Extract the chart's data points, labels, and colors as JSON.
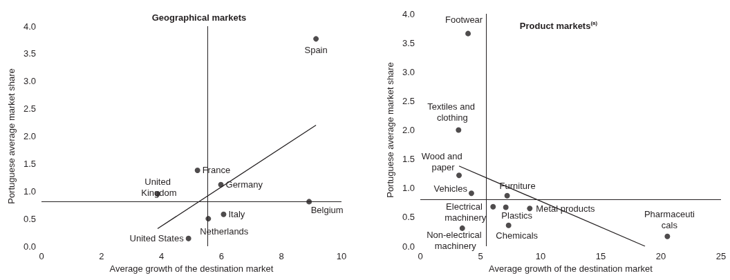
{
  "chart_data": [
    {
      "type": "scatter",
      "title": "Geographical markets",
      "xlabel": "Average growth of the destination market",
      "ylabel": "Portuguese average market share",
      "series": [
        {
          "color": "#231f20",
          "x": [
            9.15,
            5.2,
            5.98,
            3.87,
            8.92,
            6.07,
            5.56,
            4.9
          ],
          "values": [
            3.77,
            1.38,
            1.12,
            0.95,
            0.81,
            0.58,
            0.5,
            0.14
          ]
        },
        {
          "type": "line",
          "color": "#231f20",
          "marker": "none",
          "x": [
            3.87,
            9.15
          ],
          "values": [
            0.32,
            2.2
          ]
        }
      ],
      "annotations": [
        {
          "text": "Spain",
          "x": 9.15,
          "y": 3.77
        },
        {
          "text": "France",
          "x": 5.2,
          "y": 1.38
        },
        {
          "text": "Germany",
          "x": 5.98,
          "y": 1.12
        },
        {
          "text": "United Kingdom",
          "x": 3.87,
          "y": 0.95
        },
        {
          "text": "Belgium",
          "x": 8.92,
          "y": 0.81
        },
        {
          "text": "Italy",
          "x": 6.07,
          "y": 0.58
        },
        {
          "text": "Netherlands",
          "x": 5.56,
          "y": 0.5
        },
        {
          "text": "United States",
          "x": 4.9,
          "y": 0.14
        }
      ],
      "ref_lines": [
        {
          "axis": "x",
          "value": 5.53
        },
        {
          "axis": "y",
          "value": 0.81
        }
      ],
      "xlim": [
        0,
        10
      ],
      "xticks": [
        0,
        2,
        4,
        6,
        8,
        10
      ],
      "ylim": [
        0,
        4
      ],
      "yticks": [
        {
          "value": 0,
          "label": "0.0"
        },
        0.5,
        {
          "value": 1,
          "label": "1.0"
        },
        1.5,
        {
          "value": 2,
          "label": "2.0"
        },
        2.5,
        {
          "value": 3,
          "label": "3.0"
        },
        3.5,
        {
          "value": 4,
          "label": "4.0"
        }
      ],
      "marker": "circle",
      "grid": false
    },
    {
      "type": "scatter",
      "title": "Product markets$^{(a)}$",
      "xlabel": "Average growth of the destination market",
      "ylabel": "Portuguese average market share",
      "series": [
        {
          "color": "#231f20",
          "x": [
            3.97,
            3.18,
            3.22,
            4.25,
            7.22,
            6.05,
            7.11,
            9.1,
            7.34,
            3.49,
            20.54
          ],
          "values": [
            3.66,
            2.0,
            1.22,
            0.91,
            0.87,
            0.68,
            0.67,
            0.65,
            0.36,
            0.31,
            0.17
          ]
        },
        {
          "type": "line",
          "color": "#231f20",
          "marker": "none",
          "x": [
            3.22,
            18.68
          ],
          "values": [
            1.38,
            0.0
          ]
        }
      ],
      "annotations": [
        {
          "text": "Footwear",
          "x": 3.97,
          "y": 3.66
        },
        {
          "text": "Textiles and clothing",
          "x": 3.18,
          "y": 2.0
        },
        {
          "text": "Wood and paper",
          "x": 3.22,
          "y": 1.22
        },
        {
          "text": "Vehicles",
          "x": 4.25,
          "y": 0.91
        },
        {
          "text": "Furniture",
          "x": 7.22,
          "y": 0.87
        },
        {
          "text": "Electrical machinery",
          "x": 6.05,
          "y": 0.68
        },
        {
          "text": "Plastics",
          "x": 7.11,
          "y": 0.67
        },
        {
          "text": "Metal products",
          "x": 9.1,
          "y": 0.65
        },
        {
          "text": "Chemicals",
          "x": 7.34,
          "y": 0.36
        },
        {
          "text": "Non-electrical machinery",
          "x": 3.49,
          "y": 0.31
        },
        {
          "text": "Pharmaceuticals",
          "x": 20.54,
          "y": 0.17
        }
      ],
      "ref_lines": [
        {
          "axis": "x",
          "value": 5.5
        },
        {
          "axis": "y",
          "value": 0.8
        }
      ],
      "xlim": [
        0,
        25
      ],
      "xticks": [
        0,
        5,
        10,
        15,
        20,
        25
      ],
      "ylim": [
        0,
        4
      ],
      "yticks": [
        {
          "value": 0,
          "label": "0.0"
        },
        0.5,
        {
          "value": 1,
          "label": "1.0"
        },
        1.5,
        {
          "value": 2,
          "label": "2.0"
        },
        2.5,
        {
          "value": 3,
          "label": "3.0"
        },
        3.5,
        {
          "value": 4,
          "label": "4.0"
        }
      ],
      "marker": "circle",
      "grid": false
    }
  ]
}
